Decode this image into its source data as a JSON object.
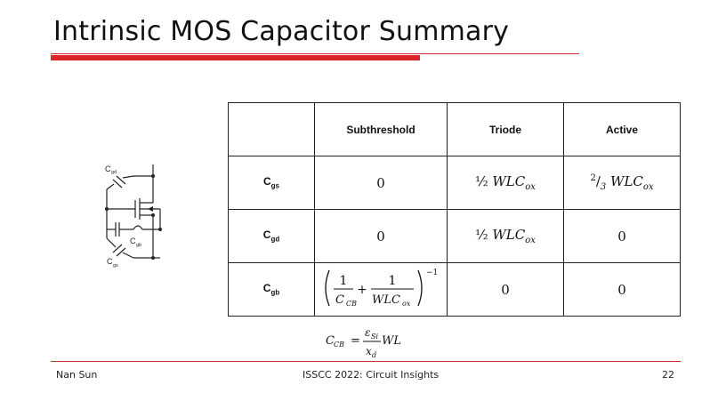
{
  "slide": {
    "title": "Intrinsic MOS Capacitor Summary"
  },
  "circuit": {
    "labels": {
      "cgd_main": "C",
      "cgd_sub": "gd",
      "cgb_main": "C",
      "cgb_sub": "gb",
      "cgs_main": "C",
      "cgs_sub": "gs"
    }
  },
  "table": {
    "headers": [
      "",
      "Subthreshold",
      "Triode",
      "Active"
    ],
    "rows": [
      {
        "label_main": "C",
        "label_sub": "gs",
        "subthreshold": "0",
        "triode_frac": "½",
        "triode_var": "WLC",
        "triode_sub": "ox",
        "active_num": "2",
        "active_den": "3",
        "active_var": "WLC",
        "active_sub": "ox"
      },
      {
        "label_main": "C",
        "label_sub": "gd",
        "subthreshold": "0",
        "triode_frac": "½",
        "triode_var": "WLC",
        "triode_sub": "ox",
        "active": "0"
      },
      {
        "label_main": "C",
        "label_sub": "gb",
        "sub_f1_num": "1",
        "sub_f1_den_main": "C",
        "sub_f1_den_sub": "CB",
        "sub_plus": "+",
        "sub_f2_num": "1",
        "sub_f2_den_main": "WLC",
        "sub_f2_den_sub": "ox",
        "sub_exp": "−1",
        "triode": "0",
        "active": "0"
      }
    ]
  },
  "formula": {
    "lhs_main": "C",
    "lhs_sub": "CB",
    "eq": "=",
    "num_main": "ε",
    "num_sub": "Si",
    "den_main": "x",
    "den_sub": "d",
    "tail": "WL"
  },
  "footer": {
    "author": "Nan Sun",
    "center": "ISSCC 2022: Circuit Insights",
    "page": "22"
  }
}
